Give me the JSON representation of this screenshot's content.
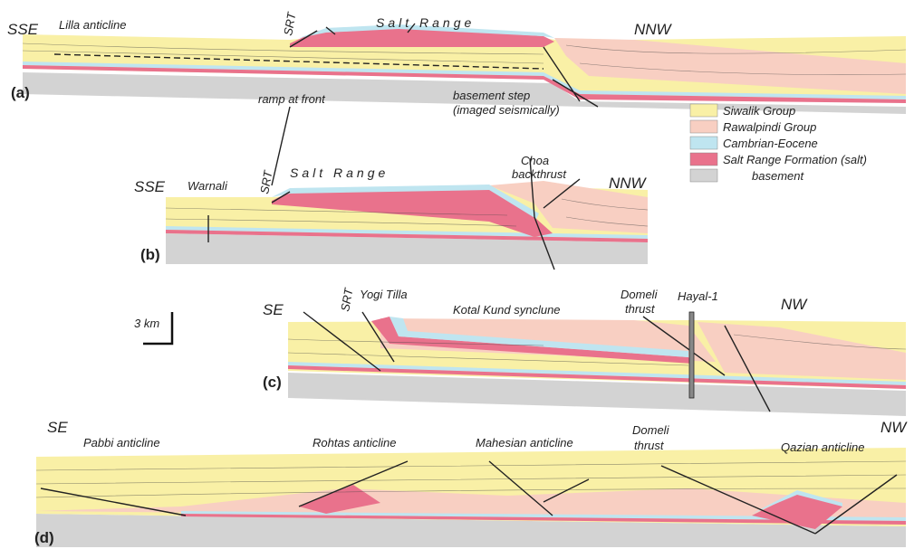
{
  "panels": [
    {
      "label": "(a)",
      "left": "SSE",
      "right": "NNW",
      "texts": [
        "Lilla anticline",
        "SRT",
        "Salt Range",
        "ramp at front",
        "basement step",
        "(imaged seismically)"
      ]
    },
    {
      "label": "(b)",
      "left": "SSE",
      "right": "NNW",
      "texts": [
        "Warnali",
        "SRT",
        "Salt Range",
        "Choa",
        "backthrust"
      ]
    },
    {
      "label": "(c)",
      "left": "SE",
      "right": "NW",
      "texts": [
        "SRT",
        "Yogi Tilla",
        "Kotal Kund synclune",
        "Domeli",
        "thrust",
        "Hayal-1"
      ]
    },
    {
      "label": "(d)",
      "left": "SE",
      "right": "NW",
      "texts": [
        "Pabbi anticline",
        "Rohtas anticline",
        "Mahesian anticline",
        "Domeli",
        "thrust",
        "Qazian anticline"
      ]
    }
  ],
  "legend": {
    "items": [
      "Siwalik Group",
      "Rawalpindi Group",
      "Cambrian-Eocene",
      "Salt Range Formation (salt)",
      "basement"
    ]
  },
  "scale_bar": "3 km"
}
